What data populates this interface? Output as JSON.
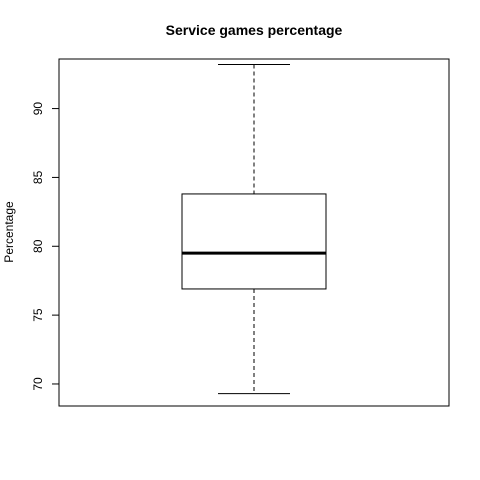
{
  "chart_data": {
    "type": "box",
    "title": "Service games percentage",
    "xlabel": "",
    "ylabel": "Percentage",
    "ylim": [
      68.4,
      93.6
    ],
    "yticks": [
      70,
      75,
      80,
      85,
      90
    ],
    "grid": false,
    "box": {
      "min": 69.3,
      "q1": 76.9,
      "median": 79.5,
      "q3": 83.8,
      "max": 93.2
    }
  }
}
